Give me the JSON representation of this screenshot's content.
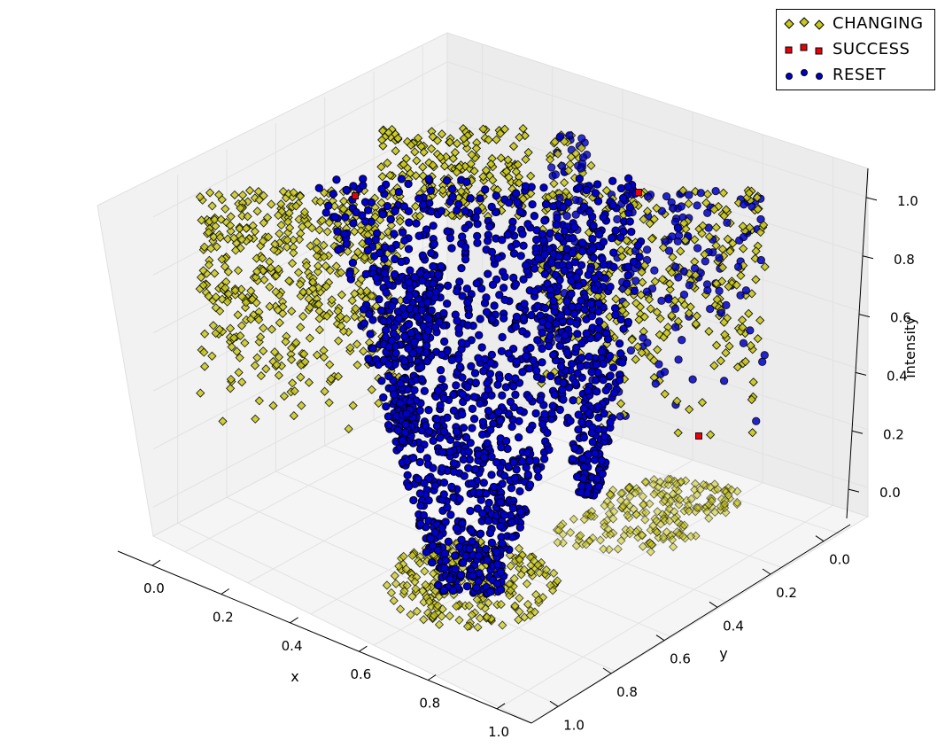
{
  "chart_data": {
    "type": "scatter",
    "title": "",
    "xlabel": "x",
    "ylabel": "y",
    "zlabel": "intensity",
    "xlim": [
      -0.1,
      1.1
    ],
    "ylim": [
      -0.1,
      1.1
    ],
    "zlim": [
      -0.1,
      1.1
    ],
    "x_ticks": [
      "0.0",
      "0.2",
      "0.4",
      "0.6",
      "0.8",
      "1.0"
    ],
    "y_ticks": [
      "0.0",
      "0.2",
      "0.4",
      "0.6",
      "0.8",
      "1.0"
    ],
    "z_ticks": [
      "0.0",
      "0.2",
      "0.4",
      "0.6",
      "0.8",
      "1.0"
    ],
    "grid": true,
    "legend": "top-right",
    "series": [
      {
        "name": "CHANGING",
        "marker": "diamond",
        "color": "#c8c81e"
      },
      {
        "name": "SUCCESS",
        "marker": "square",
        "color": "#e8000b"
      },
      {
        "name": "RESET",
        "marker": "circle",
        "color": "#0000c8"
      }
    ]
  }
}
